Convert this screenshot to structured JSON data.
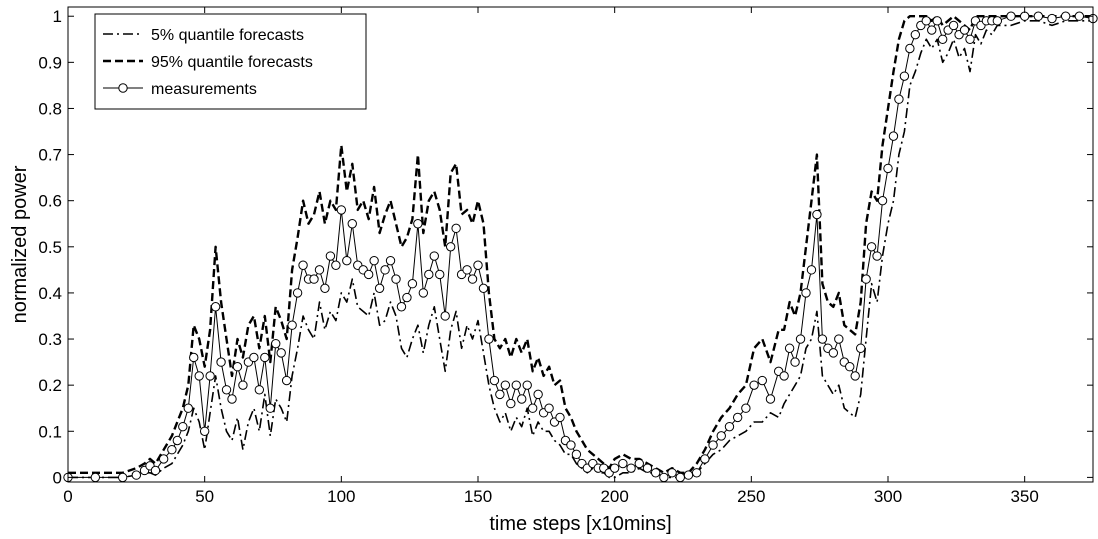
{
  "chart_data": {
    "type": "line",
    "xlabel": "time steps [x10mins]",
    "ylabel": "normalized power",
    "xlim": [
      0,
      375
    ],
    "ylim": [
      -0.01,
      1.02
    ],
    "x_ticks": [
      0,
      50,
      100,
      150,
      200,
      250,
      300,
      350
    ],
    "y_ticks": [
      0,
      0.1,
      0.2,
      0.3,
      0.4,
      0.5,
      0.6,
      0.7,
      0.8,
      0.9,
      1
    ],
    "y_tick_labels": [
      "0",
      "0.1",
      "0.2",
      "0.3",
      "0.4",
      "0.5",
      "0.6",
      "0.7",
      "0.8",
      "0.9",
      "1"
    ],
    "grid": false,
    "legend_position": "top-left",
    "series": [
      {
        "name": "5% quantile forecasts",
        "style": "dash-dot",
        "color": "#000000",
        "x": [
          0,
          10,
          20,
          25,
          28,
          30,
          32,
          35,
          38,
          40,
          42,
          44,
          46,
          48,
          50,
          52,
          54,
          56,
          58,
          60,
          62,
          64,
          66,
          68,
          70,
          72,
          74,
          76,
          78,
          80,
          82,
          84,
          86,
          88,
          90,
          92,
          94,
          96,
          98,
          100,
          102,
          104,
          106,
          108,
          110,
          112,
          114,
          116,
          118,
          120,
          122,
          124,
          126,
          128,
          130,
          132,
          134,
          136,
          138,
          140,
          142,
          144,
          146,
          148,
          150,
          152,
          154,
          156,
          158,
          160,
          162,
          164,
          166,
          168,
          170,
          172,
          174,
          176,
          178,
          180,
          182,
          184,
          186,
          188,
          190,
          192,
          194,
          196,
          198,
          200,
          203,
          206,
          209,
          212,
          215,
          218,
          221,
          224,
          227,
          230,
          233,
          236,
          239,
          242,
          245,
          248,
          251,
          254,
          257,
          260,
          262,
          264,
          266,
          268,
          270,
          272,
          274,
          276,
          278,
          280,
          282,
          284,
          286,
          288,
          290,
          292,
          294,
          296,
          298,
          300,
          302,
          304,
          306,
          308,
          310,
          312,
          314,
          316,
          318,
          320,
          322,
          324,
          326,
          328,
          330,
          332,
          334,
          336,
          338,
          340,
          345,
          350,
          355,
          360,
          365,
          370,
          375
        ],
        "y": [
          0,
          0,
          0,
          0.005,
          0.01,
          0.01,
          0.005,
          0.02,
          0.03,
          0.05,
          0.07,
          0.1,
          0.15,
          0.12,
          0.06,
          0.14,
          0.22,
          0.15,
          0.1,
          0.08,
          0.13,
          0.06,
          0.12,
          0.15,
          0.1,
          0.18,
          0.09,
          0.17,
          0.15,
          0.12,
          0.22,
          0.28,
          0.35,
          0.32,
          0.3,
          0.38,
          0.32,
          0.36,
          0.34,
          0.4,
          0.38,
          0.43,
          0.37,
          0.36,
          0.35,
          0.4,
          0.33,
          0.34,
          0.38,
          0.35,
          0.28,
          0.26,
          0.3,
          0.33,
          0.27,
          0.33,
          0.37,
          0.3,
          0.23,
          0.32,
          0.36,
          0.28,
          0.33,
          0.3,
          0.34,
          0.27,
          0.2,
          0.15,
          0.12,
          0.14,
          0.1,
          0.13,
          0.11,
          0.15,
          0.09,
          0.12,
          0.1,
          0.1,
          0.08,
          0.07,
          0.05,
          0.05,
          0.03,
          0.02,
          0.01,
          0.02,
          0.01,
          0.01,
          0,
          0,
          0.01,
          0.01,
          0.02,
          0.01,
          0.01,
          0,
          0,
          0,
          0,
          0.01,
          0.03,
          0.05,
          0.06,
          0.08,
          0.09,
          0.1,
          0.12,
          0.12,
          0.14,
          0.13,
          0.16,
          0.18,
          0.2,
          0.22,
          0.28,
          0.3,
          0.36,
          0.22,
          0.2,
          0.18,
          0.2,
          0.15,
          0.14,
          0.13,
          0.18,
          0.3,
          0.42,
          0.38,
          0.48,
          0.55,
          0.6,
          0.7,
          0.75,
          0.85,
          0.88,
          0.92,
          0.95,
          0.93,
          0.95,
          0.9,
          0.92,
          0.95,
          0.91,
          0.93,
          0.88,
          0.96,
          0.94,
          0.97,
          0.96,
          0.98,
          0.98,
          0.99,
          0.99,
          0.98,
          0.99,
          0.99,
          0.99
        ]
      },
      {
        "name": "95% quantile forecasts",
        "style": "dashed",
        "color": "#000000",
        "x": [
          0,
          10,
          20,
          25,
          28,
          30,
          32,
          35,
          38,
          40,
          42,
          44,
          46,
          48,
          50,
          52,
          54,
          56,
          58,
          60,
          62,
          64,
          66,
          68,
          70,
          72,
          74,
          76,
          78,
          80,
          82,
          84,
          86,
          88,
          90,
          92,
          94,
          96,
          98,
          100,
          102,
          104,
          106,
          108,
          110,
          112,
          114,
          116,
          118,
          120,
          122,
          124,
          126,
          128,
          130,
          132,
          134,
          136,
          138,
          140,
          142,
          144,
          146,
          148,
          150,
          152,
          154,
          156,
          158,
          160,
          162,
          164,
          166,
          168,
          170,
          172,
          174,
          176,
          178,
          180,
          182,
          184,
          186,
          188,
          190,
          192,
          194,
          196,
          198,
          200,
          203,
          206,
          209,
          212,
          215,
          218,
          221,
          224,
          227,
          230,
          233,
          236,
          239,
          242,
          245,
          248,
          251,
          254,
          257,
          260,
          262,
          264,
          266,
          268,
          270,
          272,
          274,
          276,
          278,
          280,
          282,
          284,
          286,
          288,
          290,
          292,
          294,
          296,
          298,
          300,
          302,
          304,
          306,
          308,
          310,
          312,
          314,
          316,
          318,
          320,
          322,
          324,
          326,
          328,
          330,
          332,
          334,
          336,
          338,
          340,
          345,
          350,
          355,
          360,
          365,
          370,
          375
        ],
        "y": [
          0.01,
          0.01,
          0.01,
          0.02,
          0.03,
          0.04,
          0.03,
          0.06,
          0.09,
          0.12,
          0.15,
          0.2,
          0.33,
          0.3,
          0.24,
          0.32,
          0.5,
          0.38,
          0.3,
          0.22,
          0.3,
          0.26,
          0.33,
          0.35,
          0.28,
          0.35,
          0.25,
          0.37,
          0.34,
          0.3,
          0.45,
          0.52,
          0.6,
          0.55,
          0.57,
          0.62,
          0.55,
          0.6,
          0.58,
          0.72,
          0.62,
          0.68,
          0.58,
          0.6,
          0.56,
          0.63,
          0.53,
          0.57,
          0.6,
          0.55,
          0.5,
          0.52,
          0.56,
          0.7,
          0.53,
          0.6,
          0.62,
          0.58,
          0.5,
          0.66,
          0.68,
          0.57,
          0.58,
          0.55,
          0.6,
          0.55,
          0.4,
          0.3,
          0.28,
          0.3,
          0.26,
          0.3,
          0.27,
          0.3,
          0.23,
          0.26,
          0.22,
          0.24,
          0.2,
          0.21,
          0.15,
          0.13,
          0.1,
          0.08,
          0.06,
          0.05,
          0.04,
          0.03,
          0.02,
          0.04,
          0.05,
          0.04,
          0.04,
          0.03,
          0.02,
          0.01,
          0.02,
          0.01,
          0.01,
          0.03,
          0.06,
          0.1,
          0.13,
          0.15,
          0.18,
          0.2,
          0.28,
          0.3,
          0.25,
          0.32,
          0.32,
          0.38,
          0.35,
          0.4,
          0.5,
          0.6,
          0.7,
          0.42,
          0.38,
          0.37,
          0.4,
          0.33,
          0.32,
          0.31,
          0.38,
          0.55,
          0.62,
          0.6,
          0.72,
          0.8,
          0.88,
          0.95,
          0.99,
          1,
          1,
          1,
          1,
          0.99,
          1,
          0.98,
          0.99,
          1,
          0.99,
          0.98,
          0.97,
          1,
          1,
          1,
          1,
          1,
          1,
          1,
          1,
          1,
          1,
          1,
          1
        ]
      },
      {
        "name": "measurements",
        "style": "solid-circle",
        "color": "#000000",
        "x": [
          0,
          10,
          20,
          25,
          28,
          30,
          32,
          35,
          38,
          40,
          42,
          44,
          46,
          48,
          50,
          52,
          54,
          56,
          58,
          60,
          62,
          64,
          66,
          68,
          70,
          72,
          74,
          76,
          78,
          80,
          82,
          84,
          86,
          88,
          90,
          92,
          94,
          96,
          98,
          100,
          102,
          104,
          106,
          108,
          110,
          112,
          114,
          116,
          118,
          120,
          122,
          124,
          126,
          128,
          130,
          132,
          134,
          136,
          138,
          140,
          142,
          144,
          146,
          148,
          150,
          152,
          154,
          156,
          158,
          160,
          162,
          164,
          166,
          168,
          170,
          172,
          174,
          176,
          178,
          180,
          182,
          184,
          186,
          188,
          190,
          192,
          194,
          196,
          198,
          200,
          203,
          206,
          209,
          212,
          215,
          218,
          221,
          224,
          227,
          230,
          233,
          236,
          239,
          242,
          245,
          248,
          251,
          254,
          257,
          260,
          262,
          264,
          266,
          268,
          270,
          272,
          274,
          276,
          278,
          280,
          282,
          284,
          286,
          288,
          290,
          292,
          294,
          296,
          298,
          300,
          302,
          304,
          306,
          308,
          310,
          312,
          314,
          316,
          318,
          320,
          322,
          324,
          326,
          328,
          330,
          332,
          334,
          336,
          338,
          340,
          345,
          350,
          355,
          360,
          365,
          370,
          375
        ],
        "y": [
          0,
          0,
          0,
          0.005,
          0.015,
          0.025,
          0.015,
          0.04,
          0.06,
          0.08,
          0.11,
          0.15,
          0.26,
          0.22,
          0.1,
          0.22,
          0.37,
          0.25,
          0.19,
          0.17,
          0.24,
          0.2,
          0.25,
          0.26,
          0.19,
          0.26,
          0.15,
          0.29,
          0.27,
          0.21,
          0.33,
          0.4,
          0.46,
          0.43,
          0.43,
          0.45,
          0.41,
          0.48,
          0.46,
          0.58,
          0.47,
          0.55,
          0.46,
          0.45,
          0.44,
          0.47,
          0.41,
          0.45,
          0.47,
          0.43,
          0.37,
          0.39,
          0.42,
          0.55,
          0.4,
          0.44,
          0.48,
          0.44,
          0.35,
          0.5,
          0.54,
          0.44,
          0.45,
          0.43,
          0.46,
          0.41,
          0.3,
          0.21,
          0.18,
          0.2,
          0.16,
          0.2,
          0.17,
          0.2,
          0.15,
          0.18,
          0.14,
          0.15,
          0.12,
          0.13,
          0.08,
          0.07,
          0.05,
          0.03,
          0.02,
          0.03,
          0.02,
          0.02,
          0.01,
          0.02,
          0.03,
          0.02,
          0.03,
          0.02,
          0.01,
          0,
          0.01,
          0,
          0.005,
          0.01,
          0.04,
          0.07,
          0.09,
          0.11,
          0.13,
          0.15,
          0.2,
          0.21,
          0.17,
          0.23,
          0.22,
          0.28,
          0.25,
          0.3,
          0.4,
          0.45,
          0.57,
          0.3,
          0.28,
          0.27,
          0.3,
          0.25,
          0.24,
          0.22,
          0.28,
          0.43,
          0.5,
          0.48,
          0.6,
          0.67,
          0.74,
          0.82,
          0.87,
          0.93,
          0.96,
          0.98,
          0.99,
          0.97,
          0.99,
          0.95,
          0.97,
          0.98,
          0.96,
          0.97,
          0.95,
          0.99,
          0.98,
          0.99,
          0.99,
          0.99,
          1,
          1,
          1,
          0.995,
          1,
          1,
          0.995
        ]
      }
    ]
  }
}
